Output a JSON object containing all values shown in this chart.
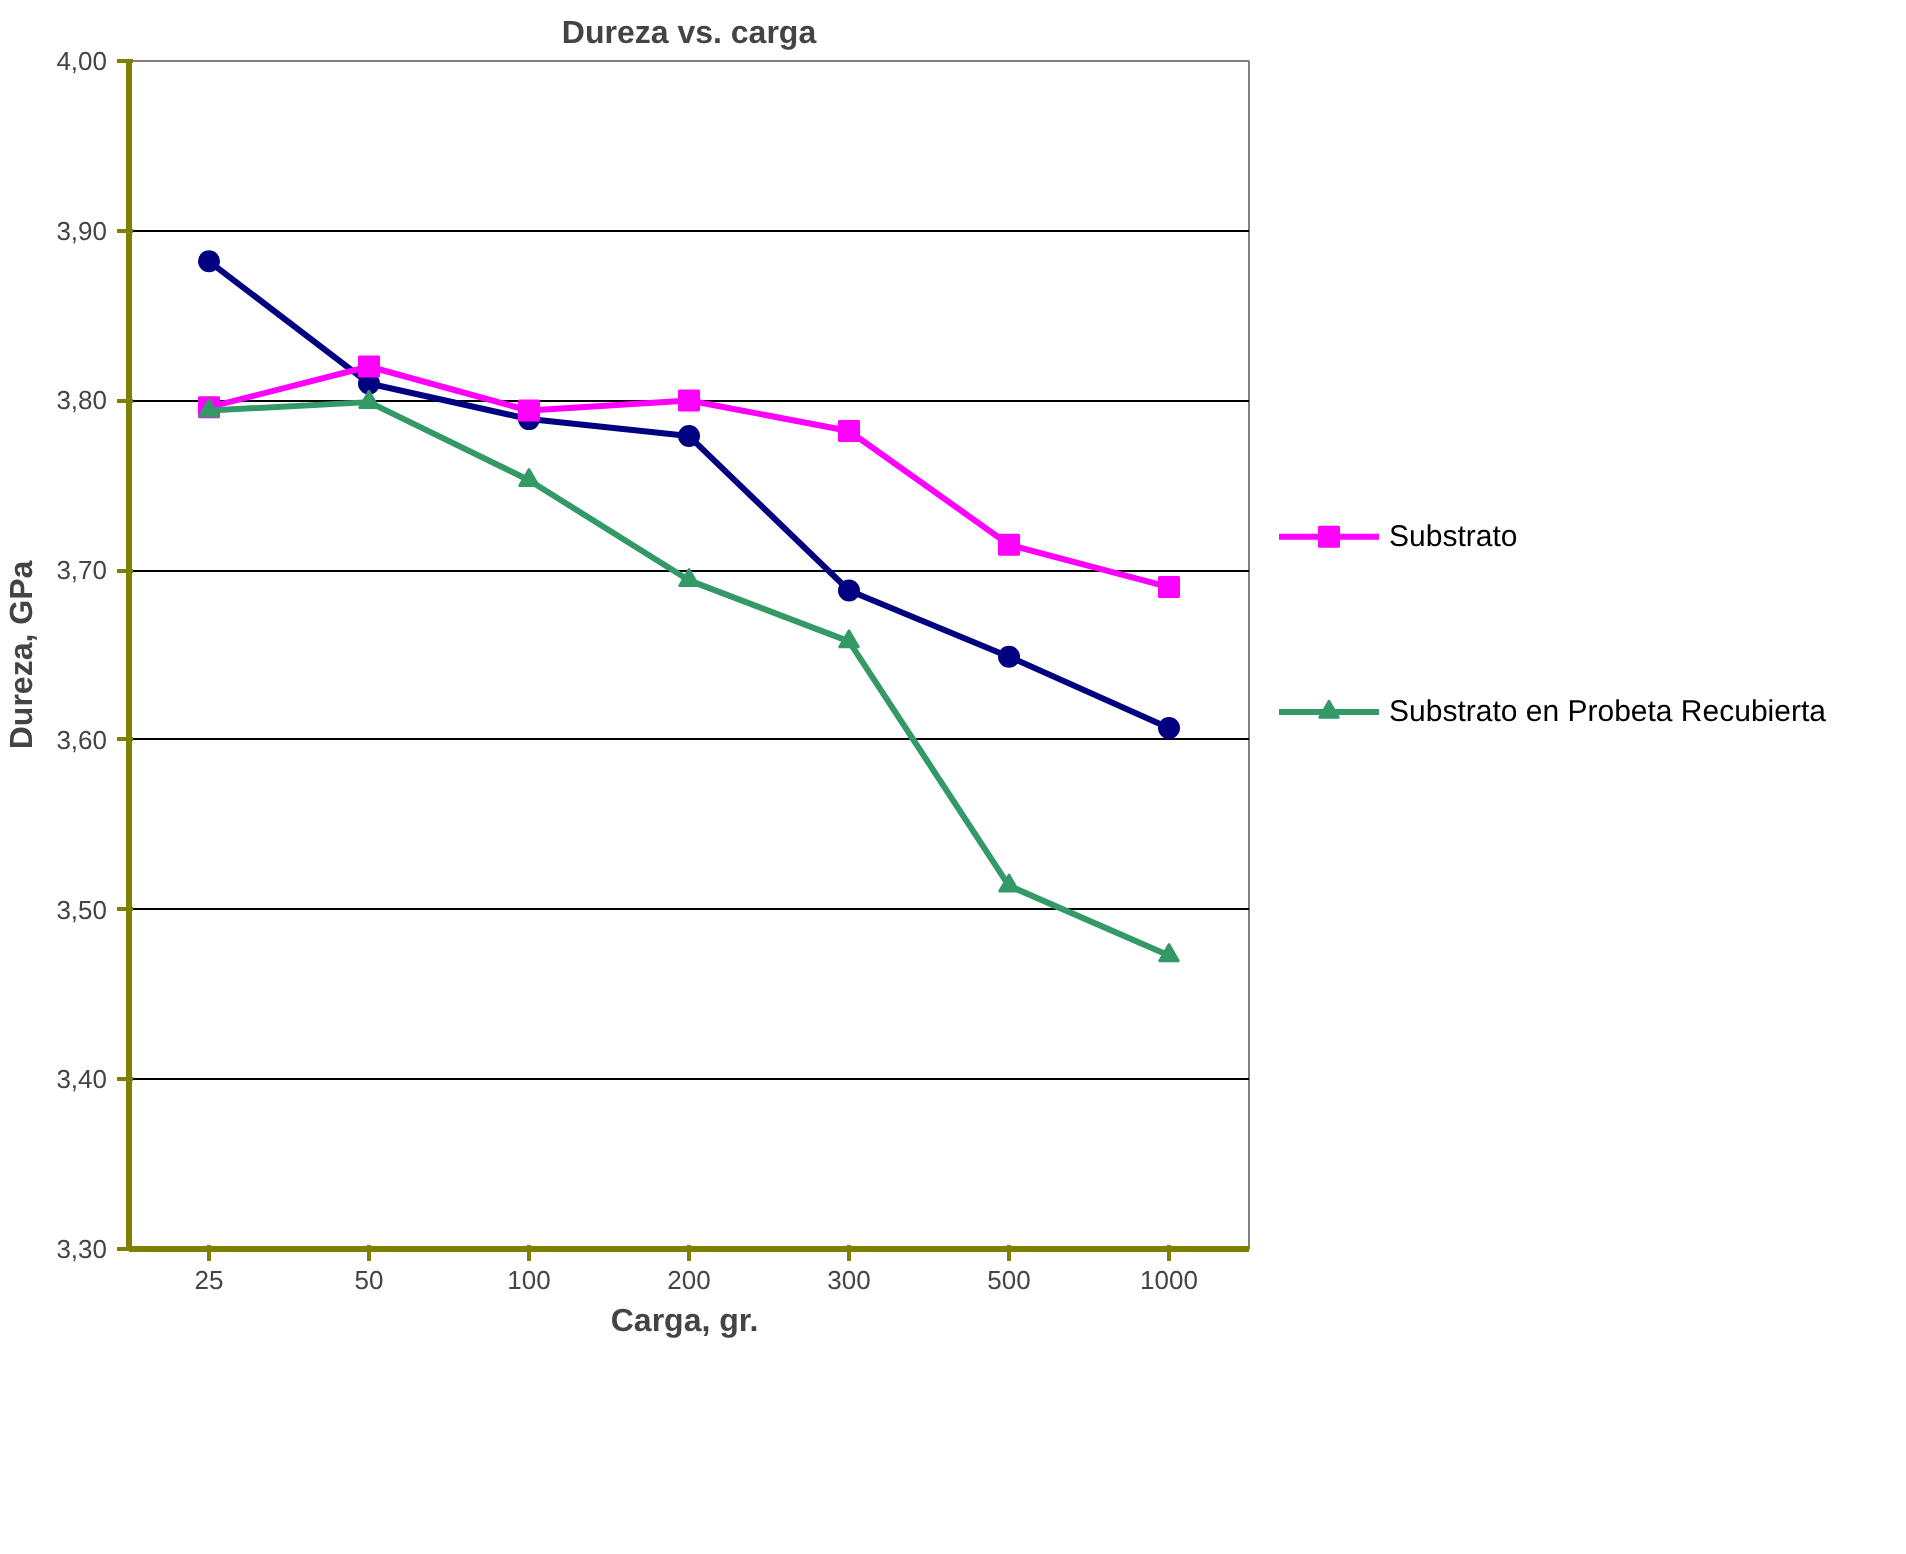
{
  "chart_data": {
    "type": "line",
    "title": "Dureza vs. carga",
    "xlabel": "Carga,  gr.",
    "ylabel": "Dureza, GPa",
    "categories": [
      "25",
      "50",
      "100",
      "200",
      "300",
      "500",
      "1000"
    ],
    "ylim": [
      3.3,
      4.0
    ],
    "yticks": [
      {
        "value": 3.3,
        "label": "3,30"
      },
      {
        "value": 3.4,
        "label": "3,40"
      },
      {
        "value": 3.5,
        "label": "3,50"
      },
      {
        "value": 3.6,
        "label": "3,60"
      },
      {
        "value": 3.7,
        "label": "3,70"
      },
      {
        "value": 3.8,
        "label": "3,80"
      },
      {
        "value": 3.9,
        "label": "3,90"
      },
      {
        "value": 4.0,
        "label": "4,00"
      }
    ],
    "grid": "y",
    "legend": "right",
    "series": [
      {
        "color": "#000080",
        "marker": "circle",
        "values": [
          3.882,
          3.81,
          3.789,
          3.779,
          3.688,
          3.649,
          3.607
        ]
      },
      {
        "name": "Substrato",
        "color": "#ff00ff",
        "marker": "square",
        "values": [
          3.796,
          3.82,
          3.794,
          3.8,
          3.782,
          3.715,
          3.69
        ]
      },
      {
        "name": "Substrato en Probeta Recubierta",
        "color": "#339966",
        "marker": "triangle",
        "values": [
          3.794,
          3.799,
          3.753,
          3.694,
          3.658,
          3.514,
          3.473
        ]
      }
    ]
  }
}
